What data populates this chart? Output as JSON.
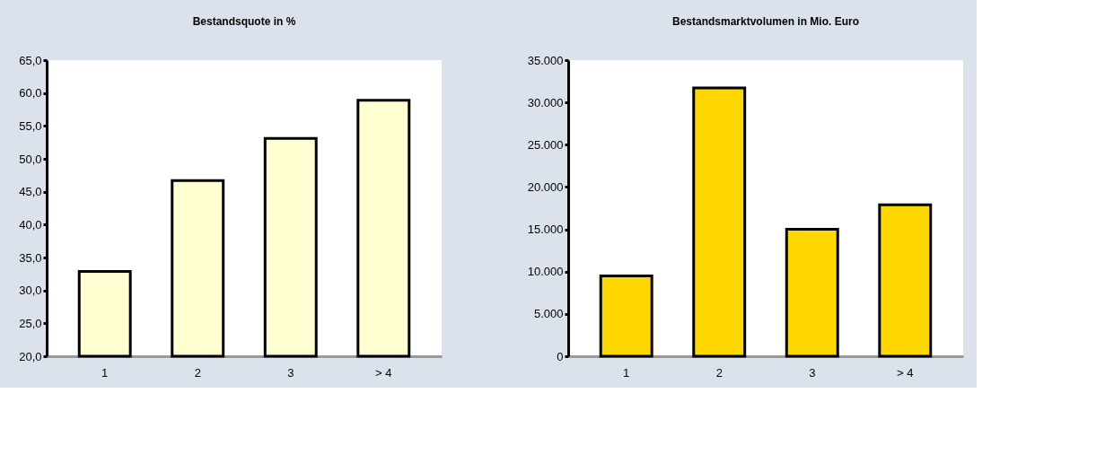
{
  "chart_data": [
    {
      "type": "bar",
      "title": "Bestandsquote in %",
      "categories": [
        "1",
        "2",
        "3",
        "> 4"
      ],
      "values": [
        32.9,
        46.7,
        53.1,
        58.9
      ],
      "color": "#ffffd2",
      "ylim": [
        20,
        65
      ],
      "yticks": [
        {
          "value": 20,
          "label": "20,0"
        },
        {
          "value": 25,
          "label": "25,0"
        },
        {
          "value": 30,
          "label": "30,0"
        },
        {
          "value": 35,
          "label": "35,0"
        },
        {
          "value": 40,
          "label": "40,0"
        },
        {
          "value": 45,
          "label": "45,0"
        },
        {
          "value": 50,
          "label": "50,0"
        },
        {
          "value": 55,
          "label": "55,0"
        },
        {
          "value": 60,
          "label": "60,0"
        },
        {
          "value": 65,
          "label": "65,0"
        }
      ],
      "grid": false
    },
    {
      "type": "bar",
      "title": "Bestandsmarktvolumen in Mio. Euro",
      "categories": [
        "1",
        "2",
        "3",
        "> 4"
      ],
      "values": [
        9500,
        31700,
        15000,
        17900
      ],
      "color": "#ffd700",
      "ylim": [
        0,
        35000
      ],
      "yticks": [
        0,
        {
          "value": 5000,
          "label": "5.000"
        },
        {
          "value": 10000,
          "label": "10.000"
        },
        {
          "value": 15000,
          "label": "15.000"
        },
        {
          "value": 20000,
          "label": "20.000"
        },
        {
          "value": 25000,
          "label": "25.000"
        },
        {
          "value": 30000,
          "label": "30.000"
        },
        {
          "value": 35000,
          "label": "35.000"
        }
      ],
      "grid": false
    }
  ]
}
